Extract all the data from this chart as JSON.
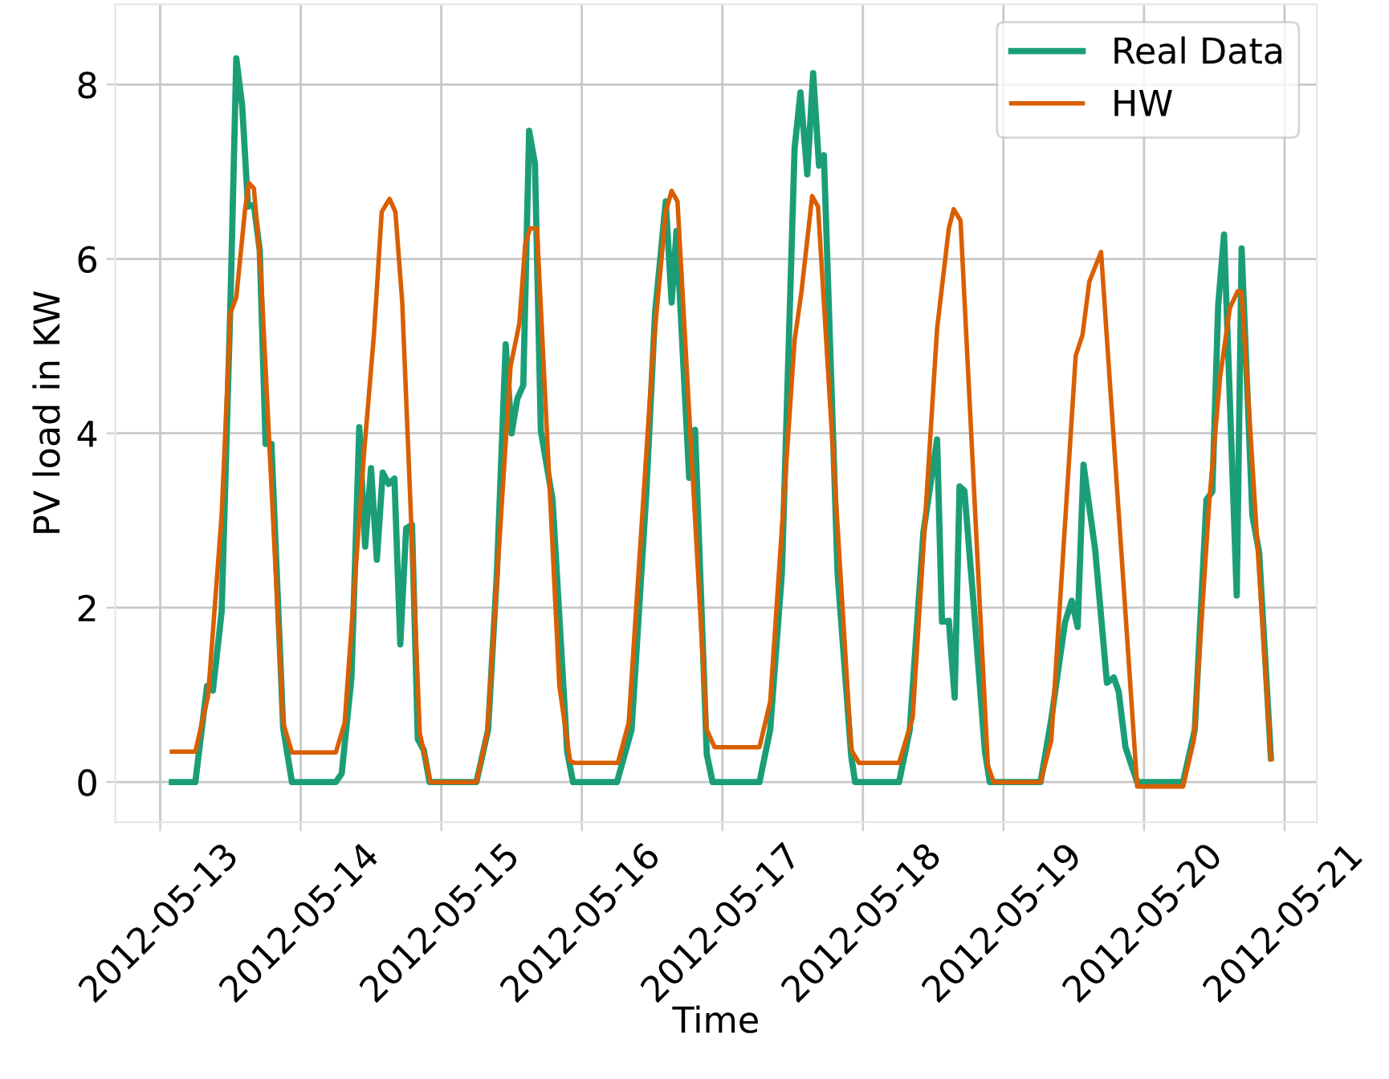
{
  "chart_data": {
    "type": "line",
    "xlabel": "Time",
    "ylabel": "PV load in KW",
    "xlim": [
      "2012-05-12T16:20",
      "2012-05-21T05:30"
    ],
    "ylim": [
      -0.46,
      8.92
    ],
    "xticks": [
      {
        "value": "2012-05-13",
        "label": "2012-05-13"
      },
      {
        "value": "2012-05-14",
        "label": "2012-05-14"
      },
      {
        "value": "2012-05-15",
        "label": "2012-05-15"
      },
      {
        "value": "2012-05-16",
        "label": "2012-05-16"
      },
      {
        "value": "2012-05-17",
        "label": "2012-05-17"
      },
      {
        "value": "2012-05-18",
        "label": "2012-05-18"
      },
      {
        "value": "2012-05-19",
        "label": "2012-05-19"
      },
      {
        "value": "2012-05-20",
        "label": "2012-05-20"
      },
      {
        "value": "2012-05-21",
        "label": "2012-05-21"
      }
    ],
    "yticks": [
      0,
      2,
      4,
      6,
      8
    ],
    "grid": true,
    "legend": "top right",
    "marker": "none",
    "line_style": "solid",
    "series": [
      {
        "name": "Real Data",
        "color": "#1b9e77",
        "x": [
          "2012-05-13T02:00",
          "2012-05-13T06:00",
          "2012-05-13T08:00",
          "2012-05-13T09:00",
          "2012-05-13T10:30",
          "2012-05-13T12:00",
          "2012-05-13T13:00",
          "2012-05-13T14:00",
          "2012-05-13T15:00",
          "2012-05-13T16:00",
          "2012-05-13T17:00",
          "2012-05-13T18:00",
          "2012-05-13T19:00",
          "2012-05-13T21:00",
          "2012-05-13T22:30",
          "2012-05-14T06:00",
          "2012-05-14T07:00",
          "2012-05-14T08:40",
          "2012-05-14T10:00",
          "2012-05-14T11:00",
          "2012-05-14T12:00",
          "2012-05-14T13:00",
          "2012-05-14T14:00",
          "2012-05-14T15:00",
          "2012-05-14T16:00",
          "2012-05-14T17:00",
          "2012-05-14T18:00",
          "2012-05-14T19:00",
          "2012-05-14T20:00",
          "2012-05-14T21:00",
          "2012-05-14T22:00",
          "2012-05-15T06:00",
          "2012-05-15T08:00",
          "2012-05-15T09:30",
          "2012-05-15T11:00",
          "2012-05-15T12:00",
          "2012-05-15T13:00",
          "2012-05-15T14:00",
          "2012-05-15T15:00",
          "2012-05-15T16:00",
          "2012-05-15T17:00",
          "2012-05-15T19:00",
          "2012-05-15T21:30",
          "2012-05-15T22:30",
          "2012-05-16T06:00",
          "2012-05-16T08:30",
          "2012-05-16T11:00",
          "2012-05-16T12:30",
          "2012-05-16T14:20",
          "2012-05-16T15:20",
          "2012-05-16T16:10",
          "2012-05-16T18:20",
          "2012-05-16T19:20",
          "2012-05-16T21:20",
          "2012-05-16T22:20",
          "2012-05-17T06:20",
          "2012-05-17T08:10",
          "2012-05-17T10:10",
          "2012-05-17T12:20",
          "2012-05-17T13:20",
          "2012-05-17T14:30",
          "2012-05-17T15:30",
          "2012-05-17T16:30",
          "2012-05-17T17:20",
          "2012-05-17T19:40",
          "2012-05-17T22:00",
          "2012-05-17T22:40",
          "2012-05-18T06:10",
          "2012-05-18T08:00",
          "2012-05-18T10:20",
          "2012-05-18T12:40",
          "2012-05-18T13:30",
          "2012-05-18T14:40",
          "2012-05-18T15:40",
          "2012-05-18T16:30",
          "2012-05-18T17:20",
          "2012-05-18T19:00",
          "2012-05-18T20:50",
          "2012-05-18T21:40",
          "2012-05-19T06:20",
          "2012-05-19T08:10",
          "2012-05-19T10:30",
          "2012-05-19T11:40",
          "2012-05-19T12:40",
          "2012-05-19T13:40",
          "2012-05-19T15:40",
          "2012-05-19T17:40",
          "2012-05-19T18:50",
          "2012-05-19T19:40",
          "2012-05-19T20:50",
          "2012-05-19T22:50",
          "2012-05-20T06:40",
          "2012-05-20T08:40",
          "2012-05-20T10:40",
          "2012-05-20T11:40",
          "2012-05-20T12:40",
          "2012-05-20T13:40",
          "2012-05-20T15:50",
          "2012-05-20T16:40",
          "2012-05-20T18:30",
          "2012-05-20T19:40",
          "2012-05-20T21:40"
        ],
        "values": [
          0,
          0,
          1.1,
          1.05,
          1.96,
          5.5,
          8.3,
          7.76,
          6.6,
          6.62,
          6.1,
          3.88,
          3.88,
          0.62,
          0,
          0,
          0.1,
          1.2,
          4.07,
          2.7,
          3.6,
          2.55,
          3.55,
          3.42,
          3.48,
          1.58,
          2.91,
          2.95,
          0.49,
          0.37,
          0,
          0,
          0.6,
          2.4,
          5.02,
          4.0,
          4.4,
          4.55,
          7.47,
          7.09,
          4.03,
          3.24,
          0.35,
          0,
          0,
          0.6,
          3.3,
          5.38,
          6.66,
          5.5,
          6.32,
          3.49,
          4.04,
          0.32,
          0,
          0,
          0.6,
          2.4,
          7.27,
          7.91,
          6.97,
          8.13,
          7.07,
          7.19,
          2.4,
          0.3,
          0,
          0,
          0.6,
          2.87,
          3.93,
          1.84,
          1.85,
          0.97,
          3.39,
          3.34,
          1.96,
          0.35,
          0,
          0,
          0.72,
          1.83,
          2.08,
          1.78,
          3.64,
          2.66,
          1.14,
          1.2,
          1.04,
          0.4,
          0,
          0,
          0.6,
          3.24,
          3.33,
          5.47,
          6.28,
          2.14,
          6.12,
          3.06,
          2.63,
          0.28
        ]
      },
      {
        "name": "HW",
        "color": "#d95f02",
        "x": [
          "2012-05-13T02:00",
          "2012-05-13T06:00",
          "2012-05-13T08:10",
          "2012-05-13T10:30",
          "2012-05-13T12:00",
          "2012-05-13T13:00",
          "2012-05-13T14:30",
          "2012-05-13T15:10",
          "2012-05-13T16:00",
          "2012-05-13T17:10",
          "2012-05-13T21:00",
          "2012-05-13T22:30",
          "2012-05-14T06:00",
          "2012-05-14T07:30",
          "2012-05-14T10:50",
          "2012-05-14T12:30",
          "2012-05-14T13:50",
          "2012-05-14T15:10",
          "2012-05-14T16:10",
          "2012-05-14T17:20",
          "2012-05-14T20:20",
          "2012-05-14T22:10",
          "2012-05-15T06:00",
          "2012-05-15T07:50",
          "2012-05-15T11:50",
          "2012-05-15T13:20",
          "2012-05-15T14:20",
          "2012-05-15T15:10",
          "2012-05-15T16:20",
          "2012-05-15T20:10",
          "2012-05-15T22:00",
          "2012-05-15T22:50",
          "2012-05-16T06:10",
          "2012-05-16T08:00",
          "2012-05-16T12:10",
          "2012-05-16T14:20",
          "2012-05-16T15:20",
          "2012-05-16T16:20",
          "2012-05-16T21:20",
          "2012-05-16T22:40",
          "2012-05-17T06:20",
          "2012-05-17T08:10",
          "2012-05-17T12:20",
          "2012-05-17T13:30",
          "2012-05-17T15:20",
          "2012-05-17T16:20",
          "2012-05-17T22:00",
          "2012-05-17T23:20",
          "2012-05-18T06:10",
          "2012-05-18T08:30",
          "2012-05-18T12:40",
          "2012-05-18T14:40",
          "2012-05-18T15:30",
          "2012-05-18T16:40",
          "2012-05-18T21:20",
          "2012-05-18T22:20",
          "2012-05-19T06:20",
          "2012-05-19T08:10",
          "2012-05-19T12:20",
          "2012-05-19T13:30",
          "2012-05-19T14:40",
          "2012-05-19T16:40",
          "2012-05-19T22:50",
          "2012-05-20T06:40",
          "2012-05-20T08:30",
          "2012-05-20T11:10",
          "2012-05-20T13:00",
          "2012-05-20T14:40",
          "2012-05-20T16:00",
          "2012-05-20T16:40",
          "2012-05-20T21:40"
        ],
        "values": [
          0.35,
          0.35,
          0.98,
          3.06,
          5.38,
          5.56,
          6.57,
          6.87,
          6.81,
          5.87,
          0.68,
          0.34,
          0.34,
          0.68,
          3.79,
          5.13,
          6.54,
          6.69,
          6.54,
          5.5,
          0.56,
          0,
          0,
          0.56,
          4.77,
          5.26,
          6.17,
          6.35,
          6.35,
          1.1,
          0.24,
          0.22,
          0.22,
          0.68,
          4.95,
          6.54,
          6.78,
          6.66,
          0.6,
          0.4,
          0.4,
          0.92,
          5.07,
          5.62,
          6.72,
          6.6,
          0.37,
          0.22,
          0.22,
          0.74,
          5.2,
          6.35,
          6.57,
          6.44,
          0.19,
          0,
          0,
          0.48,
          4.89,
          5.13,
          5.74,
          6.08,
          -0.05,
          -0.05,
          0.48,
          3.24,
          4.65,
          5.44,
          5.63,
          5.62,
          0.26
        ]
      }
    ]
  }
}
